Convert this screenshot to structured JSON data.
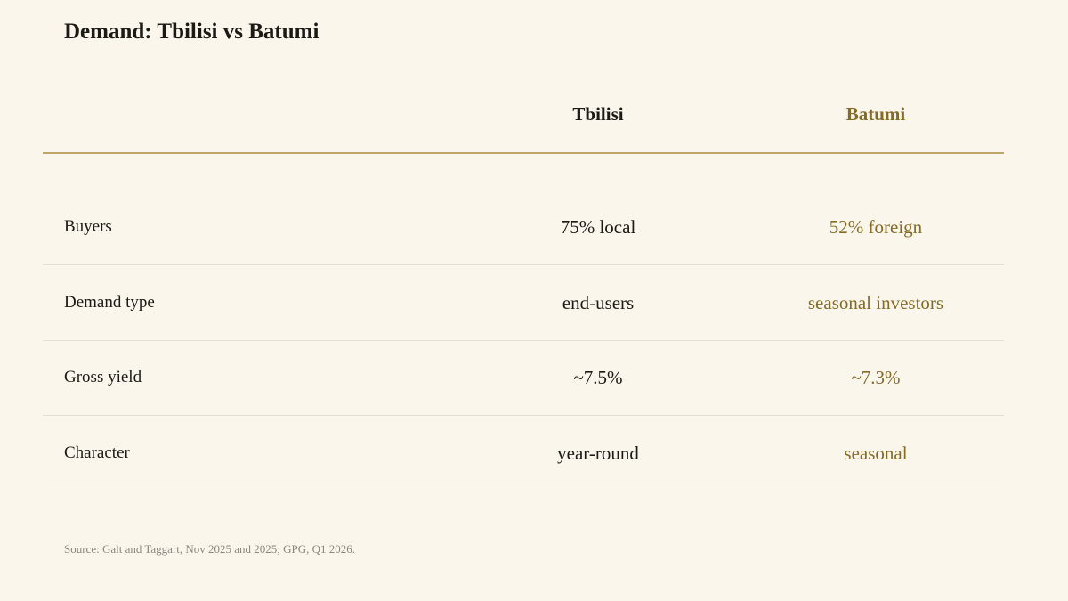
{
  "header": {
    "title": "Demand: Tbilisi vs Batumi"
  },
  "table": {
    "columns": [
      "Tbilisi",
      "Batumi"
    ],
    "rows": [
      [
        "Buyers",
        "75% local",
        "52% foreign"
      ],
      [
        "Demand type",
        "end-users",
        "seasonal investors"
      ],
      [
        "Gross yield",
        "~7.5%",
        "~7.3%"
      ],
      [
        "Character",
        "year-round",
        "seasonal"
      ]
    ]
  },
  "footer": {
    "source": "Source: Galt and Taggart, Nov 2025 and 2025; GPG, Q1 2026."
  }
}
